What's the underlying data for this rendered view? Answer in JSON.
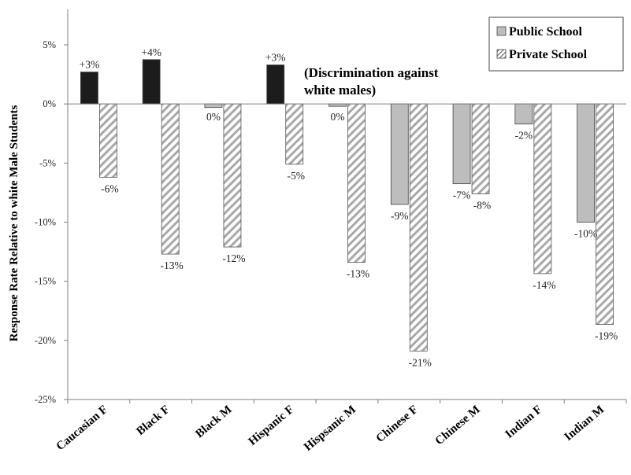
{
  "chart_data": {
    "type": "bar",
    "title": "",
    "xlabel": "",
    "ylabel": "Response Rate Relative to white Male Students",
    "ylim": [
      -25,
      5
    ],
    "yticks": [
      5,
      0,
      -5,
      -10,
      -15,
      -20,
      -25
    ],
    "ytick_labels": [
      "5%",
      "0%",
      "-5%",
      "-10%",
      "-15%",
      "-20%",
      "-25%"
    ],
    "grid": false,
    "legend_position": "top-right",
    "categories": [
      "Caucasian F",
      "Black F",
      "Black M",
      "Hispanic F",
      "Hispsanic M",
      "Chinese F",
      "Chinese M",
      "Indian F",
      "Indian M"
    ],
    "series": [
      {
        "name": "Public School",
        "values": [
          2.7,
          3.75,
          -0.3,
          3.3,
          -0.2,
          -8.5,
          -6.75,
          -1.7,
          -10.0
        ],
        "labels": [
          "+3%",
          "+4%",
          "0%",
          "+3%",
          "0%",
          "-9%",
          "-7%",
          "-2%",
          "-10%"
        ],
        "bar_colors": [
          "#1c1c1c",
          "#1c1c1c",
          "#bdbdbd",
          "#1c1c1c",
          "#bdbdbd",
          "#bdbdbd",
          "#bdbdbd",
          "#bdbdbd",
          "#bdbdbd"
        ],
        "fill": "solid-gray"
      },
      {
        "name": "Private School",
        "values": [
          -6.2,
          -12.7,
          -12.1,
          -5.1,
          -13.4,
          -20.9,
          -7.6,
          -14.35,
          -18.65
        ],
        "labels": [
          "-6%",
          "-13%",
          "-12%",
          "-5%",
          "-13%",
          "-21%",
          "-8%",
          "-14%",
          "-19%"
        ],
        "fill": "diagonal-hatch"
      }
    ],
    "annotation": {
      "lines": [
        "(Discrimination against",
        "white males)"
      ]
    }
  },
  "colors": {
    "public_gray": "#bdbdbd",
    "advantage_black": "#1c1c1c",
    "hatch_stroke": "#9a9a9a",
    "axis": "#7f7f7f"
  }
}
